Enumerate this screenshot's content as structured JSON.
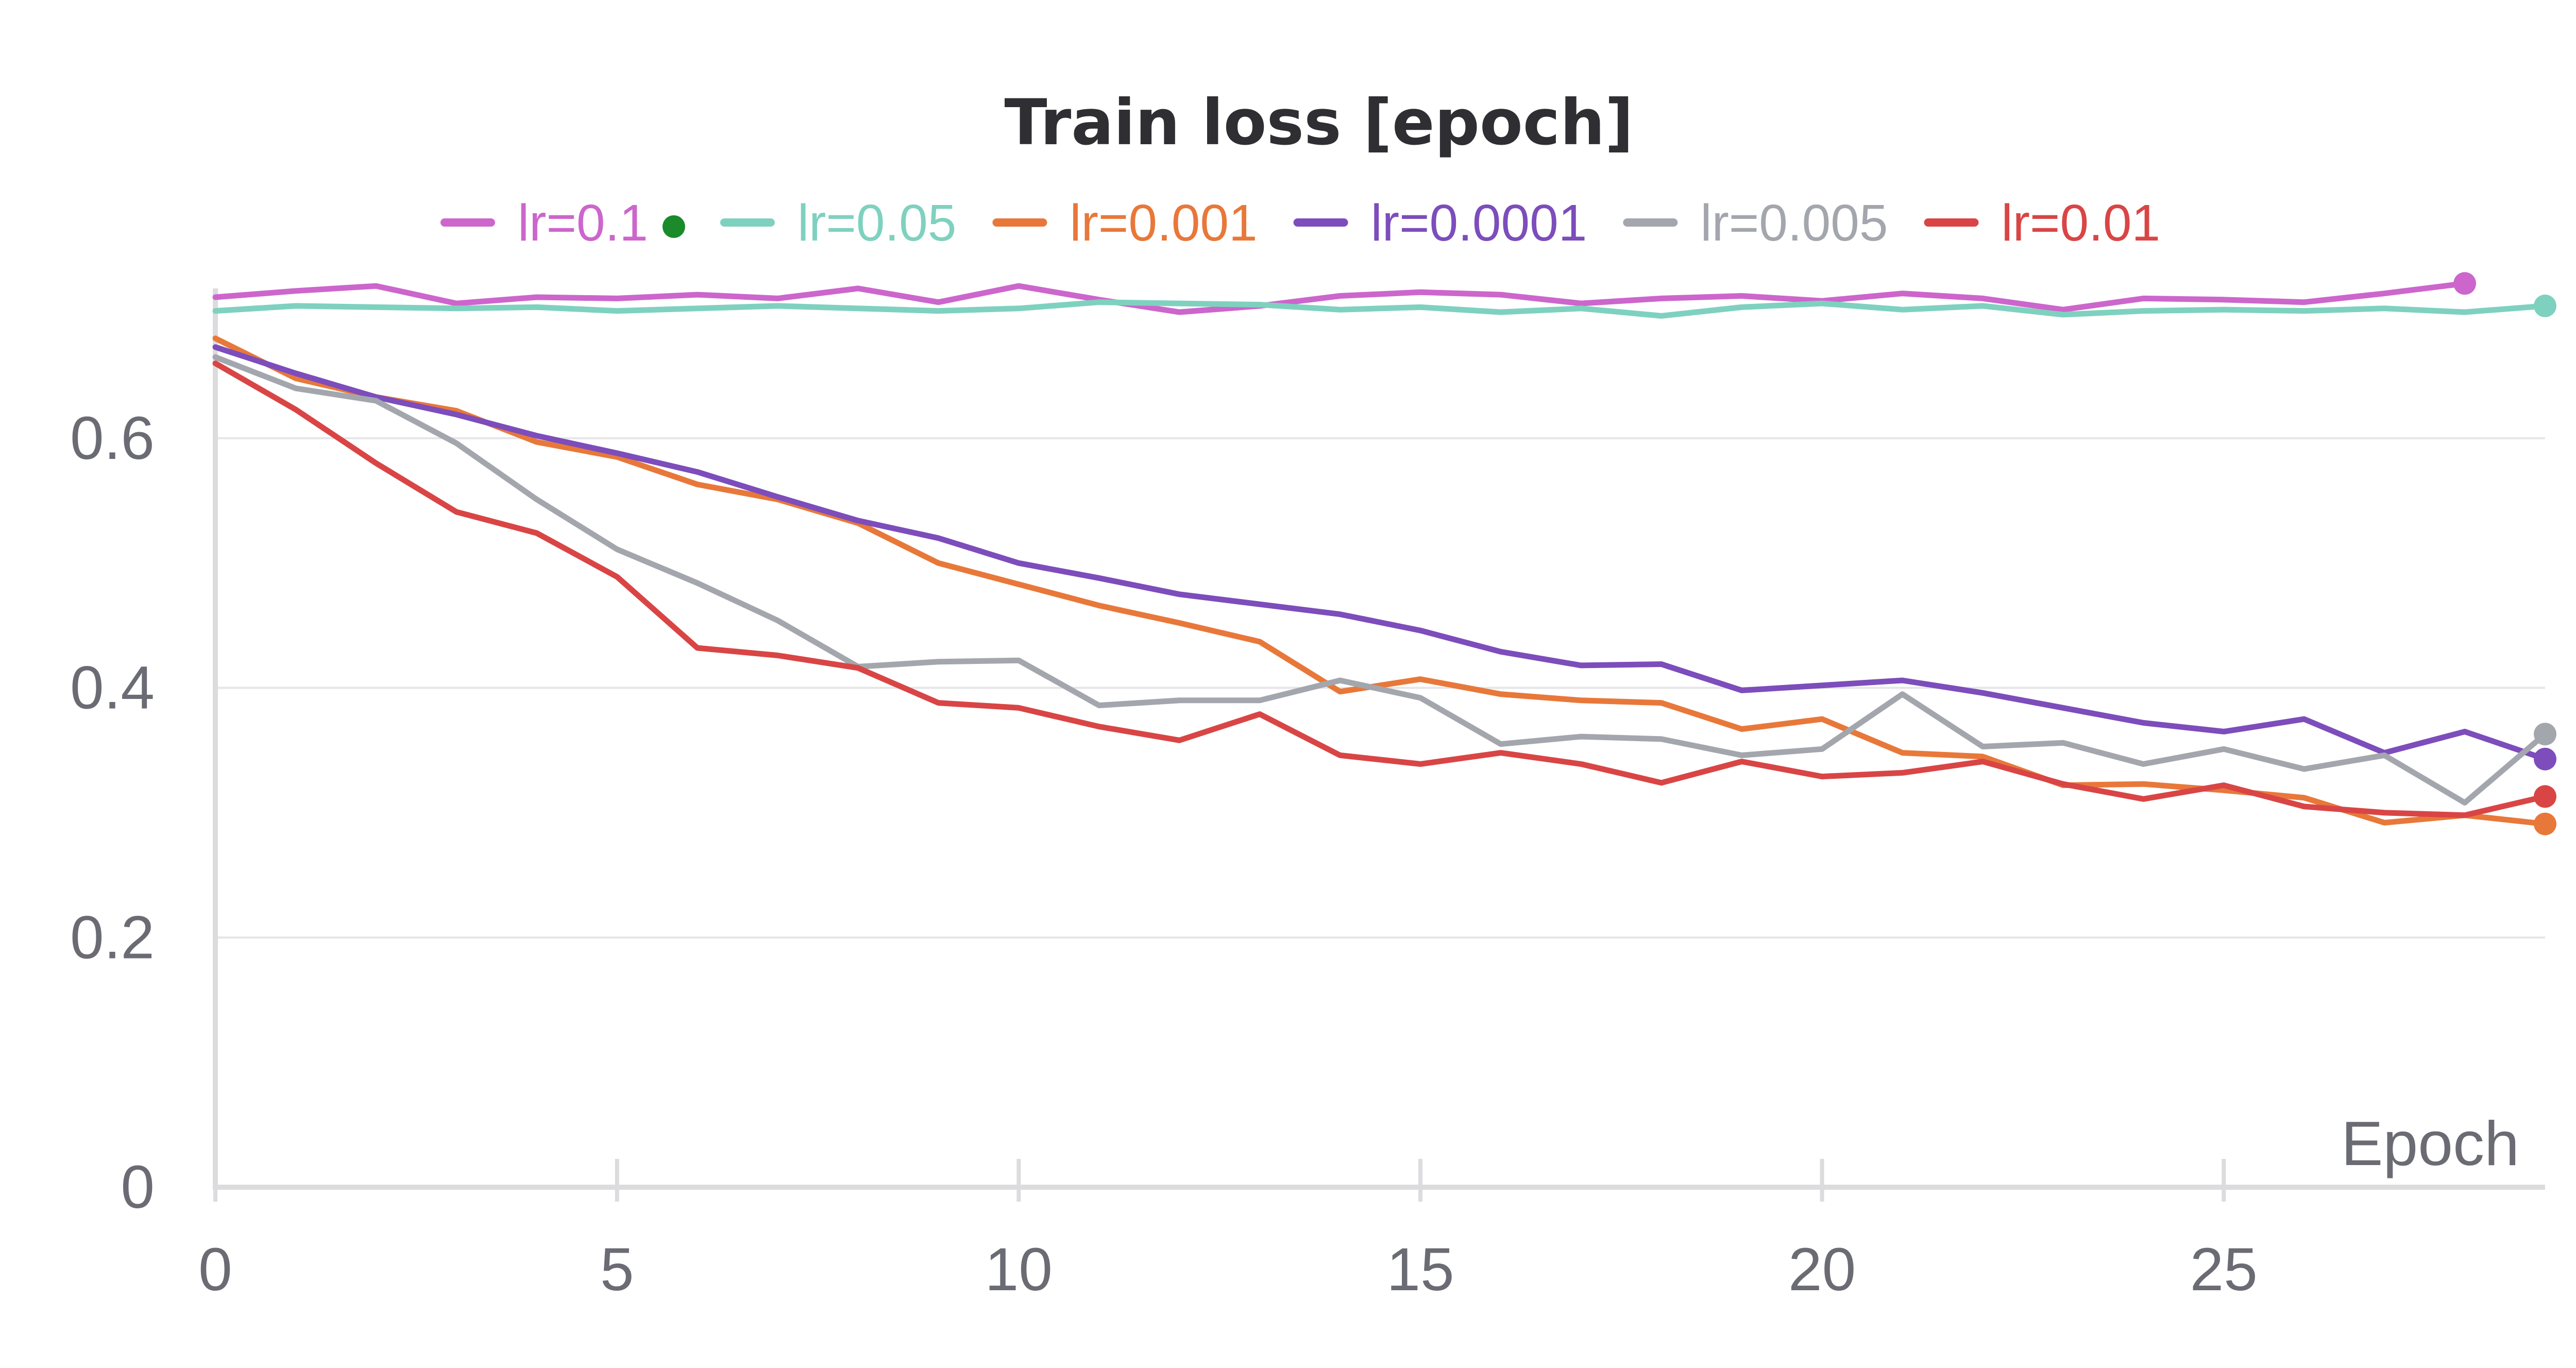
{
  "chart_data": {
    "type": "line",
    "title": "Train loss [epoch]",
    "xlabel": "Epoch",
    "ylabel": "",
    "xlim": [
      0,
      29
    ],
    "ylim": [
      0,
      0.72
    ],
    "x_ticks": [
      "0",
      "5",
      "10",
      "15",
      "20",
      "25"
    ],
    "y_ticks": [
      "0",
      "0.2",
      "0.4",
      "0.6"
    ],
    "grid": true,
    "legend_position": "top-center",
    "legend_marker_color": "#1a8a2a",
    "series": [
      {
        "name": "lr=0.1",
        "color": "#cc66cc",
        "x": [
          0,
          1,
          2,
          3,
          4,
          5,
          6,
          7,
          8,
          9,
          10,
          11,
          12,
          13,
          14,
          15,
          16,
          17,
          18,
          19,
          20,
          21,
          22,
          23,
          24,
          25,
          26,
          27,
          28
        ],
        "values": [
          0.713,
          0.718,
          0.722,
          0.708,
          0.713,
          0.712,
          0.715,
          0.712,
          0.72,
          0.709,
          0.722,
          0.711,
          0.701,
          0.706,
          0.714,
          0.717,
          0.715,
          0.708,
          0.712,
          0.714,
          0.71,
          0.716,
          0.712,
          0.703,
          0.712,
          0.711,
          0.709,
          0.716,
          0.724
        ]
      },
      {
        "name": "lr=0.05",
        "color": "#7fd1bf",
        "x": [
          0,
          1,
          2,
          3,
          4,
          5,
          6,
          7,
          8,
          9,
          10,
          11,
          12,
          13,
          14,
          15,
          16,
          17,
          18,
          19,
          20,
          21,
          22,
          23,
          24,
          25,
          26,
          27,
          28,
          29
        ],
        "values": [
          0.702,
          0.706,
          0.705,
          0.704,
          0.705,
          0.702,
          0.704,
          0.706,
          0.704,
          0.702,
          0.704,
          0.709,
          0.708,
          0.707,
          0.703,
          0.705,
          0.701,
          0.704,
          0.698,
          0.705,
          0.708,
          0.703,
          0.706,
          0.699,
          0.702,
          0.703,
          0.702,
          0.704,
          0.701,
          0.706
        ]
      },
      {
        "name": "lr=0.001",
        "color": "#e8783a",
        "x": [
          0,
          1,
          2,
          3,
          4,
          5,
          6,
          7,
          8,
          9,
          10,
          11,
          12,
          13,
          14,
          15,
          16,
          17,
          18,
          19,
          20,
          21,
          22,
          23,
          24,
          25,
          26,
          27,
          28,
          29
        ],
        "values": [
          0.68,
          0.648,
          0.633,
          0.622,
          0.597,
          0.585,
          0.563,
          0.551,
          0.532,
          0.5,
          0.483,
          0.466,
          0.452,
          0.437,
          0.397,
          0.407,
          0.395,
          0.39,
          0.388,
          0.367,
          0.375,
          0.348,
          0.345,
          0.322,
          0.323,
          0.318,
          0.312,
          0.292,
          0.298,
          0.291
        ]
      },
      {
        "name": "lr=0.0001",
        "color": "#7c4dbb",
        "x": [
          0,
          1,
          2,
          3,
          4,
          5,
          6,
          7,
          8,
          9,
          10,
          11,
          12,
          13,
          14,
          15,
          16,
          17,
          18,
          19,
          20,
          21,
          22,
          23,
          24,
          25,
          26,
          27,
          28,
          29
        ],
        "values": [
          0.673,
          0.652,
          0.633,
          0.619,
          0.602,
          0.588,
          0.573,
          0.553,
          0.534,
          0.52,
          0.5,
          0.488,
          0.475,
          0.467,
          0.459,
          0.446,
          0.429,
          0.418,
          0.419,
          0.398,
          0.402,
          0.406,
          0.396,
          0.384,
          0.372,
          0.365,
          0.375,
          0.348,
          0.365,
          0.343
        ]
      },
      {
        "name": "lr=0.005",
        "color": "#a3a7ad",
        "x": [
          0,
          1,
          2,
          3,
          4,
          5,
          6,
          7,
          8,
          9,
          10,
          11,
          12,
          13,
          14,
          15,
          16,
          17,
          18,
          19,
          20,
          21,
          22,
          23,
          24,
          25,
          26,
          27,
          28,
          29
        ],
        "values": [
          0.665,
          0.64,
          0.63,
          0.596,
          0.551,
          0.511,
          0.484,
          0.454,
          0.417,
          0.421,
          0.422,
          0.386,
          0.39,
          0.39,
          0.406,
          0.392,
          0.355,
          0.361,
          0.359,
          0.346,
          0.351,
          0.395,
          0.353,
          0.356,
          0.339,
          0.351,
          0.335,
          0.346,
          0.308,
          0.363
        ]
      },
      {
        "name": "lr=0.01",
        "color": "#d94545",
        "x": [
          0,
          1,
          2,
          3,
          4,
          5,
          6,
          7,
          8,
          9,
          10,
          11,
          12,
          13,
          14,
          15,
          16,
          17,
          18,
          19,
          20,
          21,
          22,
          23,
          24,
          25,
          26,
          27,
          28,
          29
        ],
        "values": [
          0.66,
          0.623,
          0.58,
          0.541,
          0.524,
          0.489,
          0.432,
          0.426,
          0.416,
          0.388,
          0.384,
          0.369,
          0.358,
          0.379,
          0.346,
          0.339,
          0.348,
          0.339,
          0.324,
          0.341,
          0.329,
          0.332,
          0.341,
          0.323,
          0.311,
          0.322,
          0.305,
          0.3,
          0.298,
          0.313
        ]
      }
    ]
  }
}
